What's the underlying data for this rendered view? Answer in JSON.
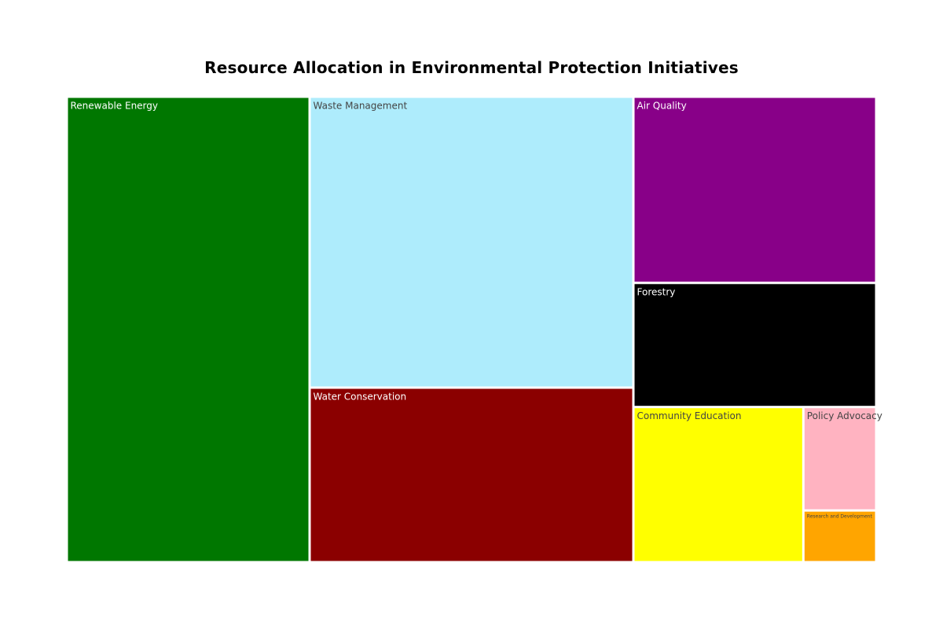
{
  "chart_data": {
    "type": "treemap",
    "title": "Resource Allocation in Environmental Protection Initiatives",
    "items": [
      {
        "label": "Renewable Energy",
        "value": 30,
        "color": "#007700",
        "text_color": "#ffffff"
      },
      {
        "label": "Waste Management",
        "value": 25,
        "color": "#aeecfc",
        "text_color": "#444444"
      },
      {
        "label": "Water Conservation",
        "value": 15,
        "color": "#8b0000",
        "text_color": "#ffffff"
      },
      {
        "label": "Air Quality",
        "value": 12,
        "color": "#880088",
        "text_color": "#ffffff"
      },
      {
        "label": "Forestry",
        "value": 8,
        "color": "#000000",
        "text_color": "#ffffff"
      },
      {
        "label": "Community Education",
        "value": 7,
        "color": "#ffff00",
        "text_color": "#444444"
      },
      {
        "label": "Policy Advocacy",
        "value": 2,
        "color": "#ffb3c1",
        "text_color": "#444444"
      },
      {
        "label": "Research and Development",
        "value": 1,
        "color": "#ffa500",
        "text_color": "#444444"
      }
    ]
  }
}
